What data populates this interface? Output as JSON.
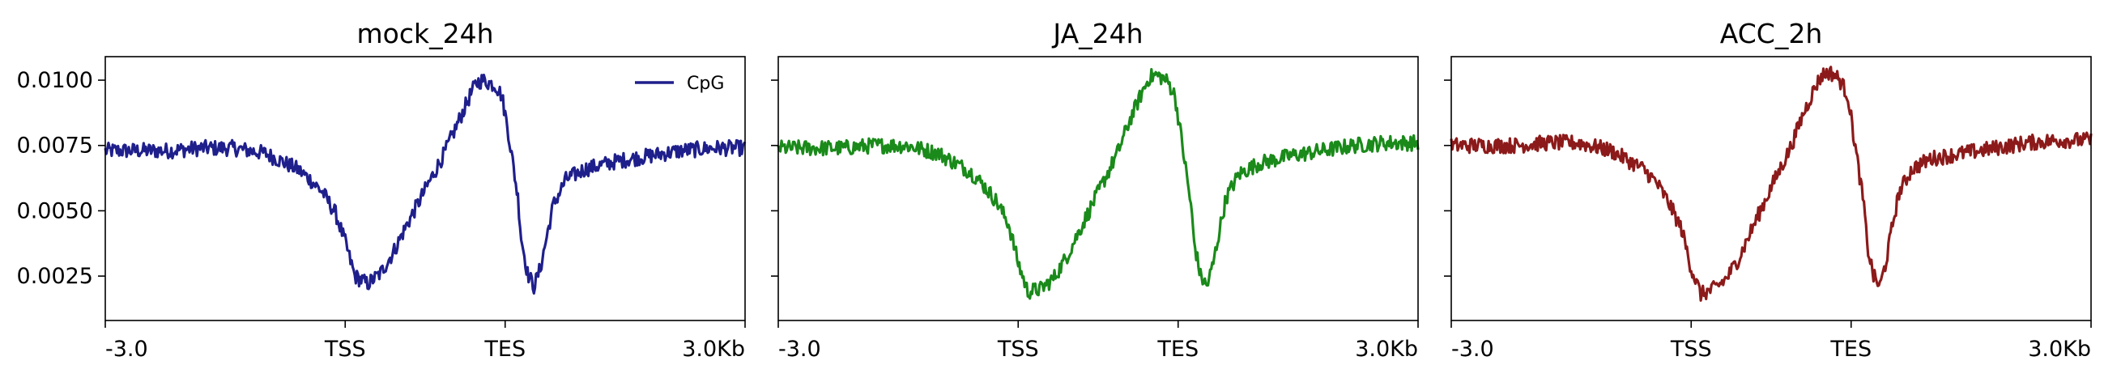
{
  "chart_data": [
    {
      "type": "line",
      "title": "mock_24h",
      "color": "#1f1f8c",
      "x_ticks": [
        "-3.0",
        "TSS",
        "TES",
        "3.0Kb"
      ],
      "y_ticks": [
        "0.0100",
        "0.0075",
        "0.0050",
        "0.0025"
      ],
      "y_tick_values": [
        0.01,
        0.0075,
        0.005,
        0.0025
      ],
      "ylim": [
        0.0008,
        0.0109
      ],
      "xlim": [
        0,
        100
      ],
      "grid": false,
      "legend": {
        "placement": "top-right",
        "entries": [
          "CpG"
        ]
      },
      "series": [
        {
          "name": "CpG",
          "x": [
            0,
            5,
            10,
            15,
            20,
            25,
            30,
            32,
            34,
            36,
            37.5,
            39,
            41,
            43,
            45,
            47,
            50,
            53,
            55,
            57,
            58,
            59,
            60,
            61,
            62,
            63,
            64.5,
            65,
            66,
            67,
            68,
            69,
            70,
            72,
            75,
            80,
            85,
            90,
            95,
            100
          ],
          "y": [
            0.0073,
            0.0073,
            0.0073,
            0.0074,
            0.0074,
            0.0072,
            0.0066,
            0.0062,
            0.0057,
            0.0049,
            0.0038,
            0.0025,
            0.0022,
            0.0026,
            0.0034,
            0.0044,
            0.0058,
            0.0072,
            0.0083,
            0.0094,
            0.0099,
            0.01,
            0.0099,
            0.0098,
            0.0094,
            0.008,
            0.0055,
            0.004,
            0.0026,
            0.0021,
            0.0028,
            0.004,
            0.0052,
            0.0062,
            0.0066,
            0.0069,
            0.0071,
            0.0073,
            0.0074,
            0.0074
          ]
        }
      ]
    },
    {
      "type": "line",
      "title": "JA_24h",
      "color": "#1a8a1a",
      "x_ticks": [
        "-3.0",
        "TSS",
        "TES",
        "3.0Kb"
      ],
      "y_ticks": [
        "0.0100",
        "0.0075",
        "0.0050",
        "0.0025"
      ],
      "y_tick_values": [
        0.01,
        0.0075,
        0.005,
        0.0025
      ],
      "ylim": [
        0.0008,
        0.0109
      ],
      "xlim": [
        0,
        100
      ],
      "grid": false,
      "series": [
        {
          "name": "CpG",
          "x": [
            0,
            5,
            10,
            15,
            20,
            25,
            30,
            32,
            34,
            36,
            37.5,
            39,
            41,
            43,
            45,
            47,
            50,
            53,
            55,
            57,
            58,
            59,
            60,
            61,
            62,
            63,
            64.5,
            65,
            66,
            67,
            68,
            69,
            70,
            72,
            75,
            80,
            85,
            90,
            95,
            100
          ],
          "y": [
            0.0074,
            0.0074,
            0.0074,
            0.0075,
            0.0075,
            0.0072,
            0.0065,
            0.006,
            0.0054,
            0.0045,
            0.003,
            0.0019,
            0.002,
            0.0024,
            0.0032,
            0.0042,
            0.0057,
            0.0072,
            0.0085,
            0.0096,
            0.0101,
            0.0102,
            0.0101,
            0.0099,
            0.0094,
            0.0078,
            0.0052,
            0.0038,
            0.0025,
            0.0021,
            0.003,
            0.0043,
            0.0055,
            0.0064,
            0.0068,
            0.0071,
            0.0073,
            0.0075,
            0.0076,
            0.0076
          ]
        }
      ]
    },
    {
      "type": "line",
      "title": "ACC_2h",
      "color": "#8c1a1a",
      "x_ticks": [
        "-3.0",
        "TSS",
        "TES",
        "3.0Kb"
      ],
      "y_ticks": [
        "0.0100",
        "0.0075",
        "0.0050",
        "0.0025"
      ],
      "y_tick_values": [
        0.01,
        0.0075,
        0.005,
        0.0025
      ],
      "ylim": [
        0.0008,
        0.0109
      ],
      "xlim": [
        0,
        100
      ],
      "grid": false,
      "series": [
        {
          "name": "CpG",
          "x": [
            0,
            5,
            10,
            15,
            20,
            25,
            30,
            32,
            34,
            36,
            37.5,
            39,
            41,
            43,
            45,
            47,
            50,
            53,
            55,
            57,
            58,
            59,
            60,
            61,
            62,
            63,
            64.5,
            65,
            66,
            67,
            68,
            69,
            70,
            72,
            75,
            80,
            85,
            90,
            95,
            100
          ],
          "y": [
            0.0075,
            0.0075,
            0.0075,
            0.0076,
            0.0076,
            0.0073,
            0.0066,
            0.0061,
            0.0053,
            0.0043,
            0.0028,
            0.0018,
            0.002,
            0.0024,
            0.0032,
            0.0043,
            0.0059,
            0.0074,
            0.0087,
            0.0098,
            0.0102,
            0.0103,
            0.0102,
            0.0099,
            0.0094,
            0.0077,
            0.0052,
            0.0037,
            0.0025,
            0.0021,
            0.0031,
            0.0045,
            0.0057,
            0.0066,
            0.007,
            0.0072,
            0.0074,
            0.0076,
            0.0077,
            0.0077
          ]
        }
      ]
    }
  ]
}
